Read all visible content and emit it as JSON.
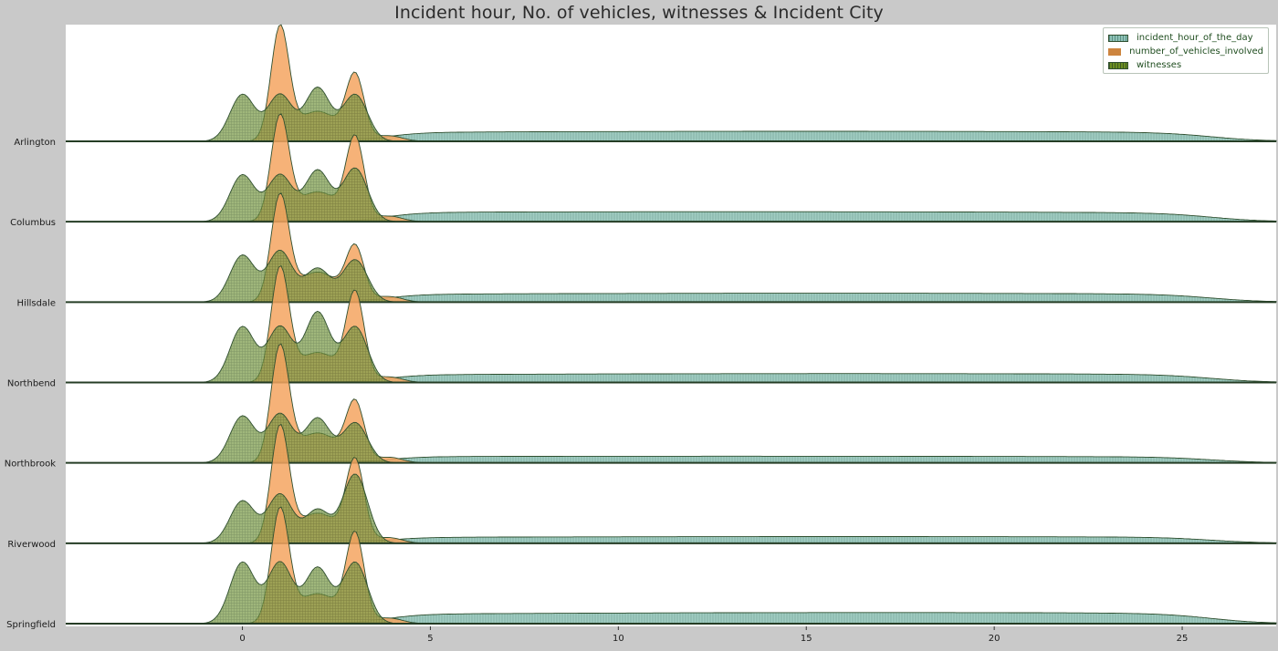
{
  "chart_data": {
    "type": "area",
    "subtype": "ridgeline",
    "title": "Incident hour, No. of vehicles, witnesses & Incident City",
    "xlabel": "",
    "ylabel": "",
    "xlim": [
      -4.7,
      27.5
    ],
    "xticks": [
      0,
      5,
      10,
      15,
      20,
      25
    ],
    "grid": false,
    "legend_position": "top-right",
    "colors": {
      "background": "#c9c9c9",
      "plot_background": "#ffffff",
      "incident_hour": "#7fbfb4",
      "vehicles": "#f4a460",
      "witnesses": "#6b8e23",
      "outline": "#2f4f2f"
    },
    "series": [
      {
        "name": "incident_hour_of_the_day",
        "color": "#7fbfb4",
        "pattern": "vertical-hatch"
      },
      {
        "name": "number_of_vehicles_involved",
        "color": "#cd853f",
        "pattern": "solid"
      },
      {
        "name": "witnesses",
        "color": "#556b2f",
        "pattern": "cross-hatch"
      }
    ],
    "categories": [
      "Arlington",
      "Columbus",
      "Hillsdale",
      "Northbend",
      "Northbrook",
      "Riverwood",
      "Springfield"
    ],
    "ridges": [
      {
        "city": "Arlington",
        "incident_hour": {
          "mid": 15.0,
          "width": 12.0,
          "level": 0.09
        },
        "vehicles": {
          "peaks": [
            [
              1,
              1.0
            ],
            [
              3,
              0.57
            ]
          ],
          "shoulder": 0.3
        },
        "witnesses": {
          "peaks": [
            [
              0,
              0.42
            ],
            [
              1,
              0.42
            ],
            [
              2,
              0.48
            ],
            [
              3,
              0.42
            ]
          ]
        }
      },
      {
        "city": "Columbus",
        "incident_hour": {
          "mid": 13.0,
          "width": 13.0,
          "level": 0.09
        },
        "vehicles": {
          "peaks": [
            [
              1,
              0.92
            ],
            [
              3,
              0.73
            ]
          ],
          "shoulder": 0.3
        },
        "witnesses": {
          "peaks": [
            [
              0,
              0.42
            ],
            [
              1,
              0.42
            ],
            [
              2,
              0.46
            ],
            [
              3,
              0.48
            ]
          ]
        }
      },
      {
        "city": "Hillsdale",
        "incident_hour": {
          "mid": 15.5,
          "width": 11.5,
          "level": 0.08
        },
        "vehicles": {
          "peaks": [
            [
              1,
              0.93
            ],
            [
              3,
              0.47
            ]
          ],
          "shoulder": 0.3
        },
        "witnesses": {
          "peaks": [
            [
              0,
              0.42
            ],
            [
              1,
              0.46
            ],
            [
              2,
              0.3
            ],
            [
              3,
              0.38
            ]
          ]
        }
      },
      {
        "city": "Northbend",
        "incident_hour": {
          "mid": 16.0,
          "width": 11.5,
          "level": 0.08
        },
        "vehicles": {
          "peaks": [
            [
              1,
              1.0
            ],
            [
              3,
              0.78
            ]
          ],
          "shoulder": 0.3
        },
        "witnesses": {
          "peaks": [
            [
              0,
              0.5
            ],
            [
              1,
              0.5
            ],
            [
              2,
              0.63
            ],
            [
              3,
              0.5
            ]
          ]
        }
      },
      {
        "city": "Northbrook",
        "incident_hour": {
          "mid": 13.0,
          "width": 14.0,
          "level": 0.06
        },
        "vehicles": {
          "peaks": [
            [
              1,
              1.02
            ],
            [
              3,
              0.52
            ]
          ],
          "shoulder": 0.3
        },
        "witnesses": {
          "peaks": [
            [
              0,
              0.42
            ],
            [
              1,
              0.44
            ],
            [
              2,
              0.4
            ],
            [
              3,
              0.36
            ]
          ]
        }
      },
      {
        "city": "Riverwood",
        "incident_hour": {
          "mid": 16.0,
          "width": 12.0,
          "level": 0.06
        },
        "vehicles": {
          "peaks": [
            [
              1,
              1.02
            ],
            [
              3,
              0.72
            ]
          ],
          "shoulder": 0.3
        },
        "witnesses": {
          "peaks": [
            [
              0,
              0.38
            ],
            [
              1,
              0.44
            ],
            [
              2,
              0.3
            ],
            [
              3,
              0.62
            ]
          ]
        }
      },
      {
        "city": "Springfield",
        "incident_hour": {
          "mid": 17.0,
          "width": 11.5,
          "level": 0.1
        },
        "vehicles": {
          "peaks": [
            [
              1,
              1.0
            ],
            [
              3,
              0.78
            ]
          ],
          "shoulder": 0.3
        },
        "witnesses": {
          "peaks": [
            [
              0,
              0.55
            ],
            [
              1,
              0.55
            ],
            [
              2,
              0.5
            ],
            [
              3,
              0.55
            ]
          ]
        }
      }
    ]
  }
}
